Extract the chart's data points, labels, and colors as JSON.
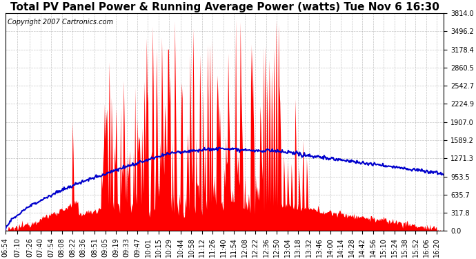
{
  "title": "Total PV Panel Power & Running Average Power (watts) Tue Nov 6 16:30",
  "copyright": "Copyright 2007 Cartronics.com",
  "background_color": "#ffffff",
  "plot_bg_color": "#ffffff",
  "grid_color": "#aaaaaa",
  "bar_color": "#ff0000",
  "line_color": "#0000cc",
  "yticks": [
    0.0,
    317.8,
    635.7,
    953.5,
    1271.3,
    1589.2,
    1907.0,
    2224.9,
    2542.7,
    2860.5,
    3178.4,
    3496.2,
    3814.0
  ],
  "ymax": 3814.0,
  "xtick_labels": [
    "06:54",
    "07:10",
    "07:26",
    "07:40",
    "07:54",
    "08:08",
    "08:22",
    "08:36",
    "08:51",
    "09:05",
    "09:19",
    "09:33",
    "09:47",
    "10:01",
    "10:15",
    "10:29",
    "10:44",
    "10:58",
    "11:12",
    "11:26",
    "11:40",
    "11:54",
    "12:08",
    "12:22",
    "12:36",
    "12:50",
    "13:04",
    "13:18",
    "13:32",
    "13:46",
    "14:00",
    "14:14",
    "14:28",
    "14:42",
    "14:56",
    "15:10",
    "15:24",
    "15:38",
    "15:52",
    "16:06",
    "16:20"
  ],
  "start_time": "06:54",
  "end_time": "16:30",
  "title_fontsize": 11,
  "copyright_fontsize": 7,
  "tick_fontsize": 7
}
